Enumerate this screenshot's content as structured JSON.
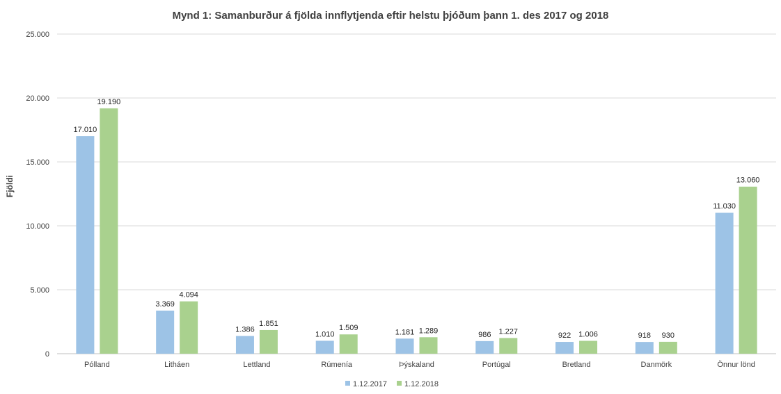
{
  "chart_data": {
    "type": "bar",
    "title": "Mynd 1: Samanburður á fjölda innflytjenda eftir helstu þjóðum þann 1. des 2017 og 2018",
    "xlabel": "",
    "ylabel": "Fjöldi",
    "ylim": [
      0,
      25000
    ],
    "yticks": [
      "0",
      "5.000",
      "10.000",
      "15.000",
      "20.000",
      "25.000"
    ],
    "ytick_values": [
      0,
      5000,
      10000,
      15000,
      20000,
      25000
    ],
    "grid": true,
    "legend_position": "bottom",
    "categories": [
      "Pólland",
      "Litháen",
      "Lettland",
      "Rúmenía",
      "Þýskaland",
      "Portúgal",
      "Bretland",
      "Danmörk",
      "Önnur lönd"
    ],
    "series": [
      {
        "name": "1.12.2017",
        "color": "#9dc3e6",
        "values": [
          17010,
          3369,
          1386,
          1010,
          1181,
          986,
          922,
          918,
          11030
        ],
        "labels": [
          "17.010",
          "3.369",
          "1.386",
          "1.010",
          "1.181",
          "986",
          "922",
          "918",
          "11.030"
        ]
      },
      {
        "name": "1.12.2018",
        "color": "#a9d18e",
        "values": [
          19190,
          4094,
          1851,
          1509,
          1289,
          1227,
          1006,
          930,
          13060
        ],
        "labels": [
          "19.190",
          "4.094",
          "1.851",
          "1.509",
          "1.289",
          "1.227",
          "1.006",
          "930",
          "13.060"
        ]
      }
    ]
  }
}
